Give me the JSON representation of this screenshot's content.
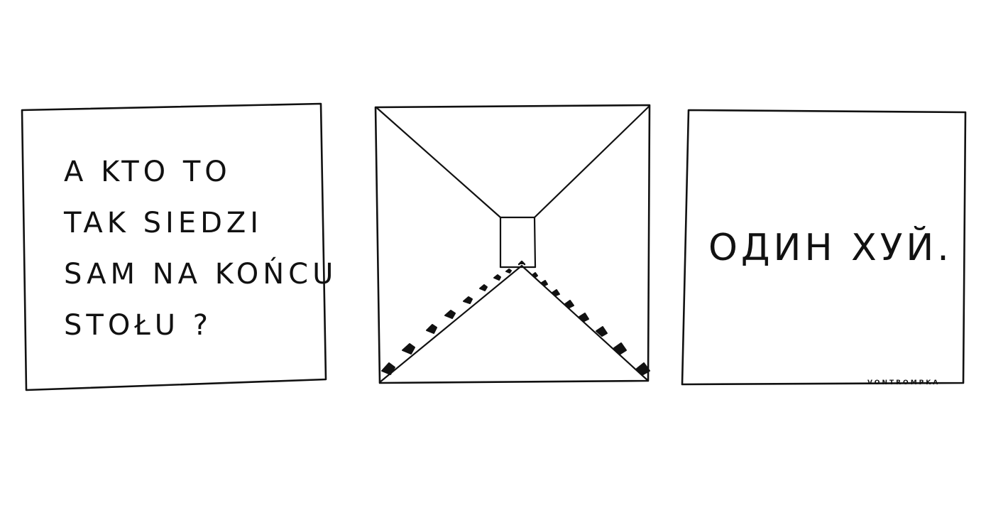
{
  "panels": [
    {
      "id": "question",
      "lines": [
        "A KTO TO",
        "TAK SIEDZI",
        "SAM NA KOŃCU",
        "STOŁU ?"
      ]
    },
    {
      "id": "long-table"
    },
    {
      "id": "answer",
      "text": "ОДИН ХУЙ."
    }
  ],
  "signature": "VONTROMPKA",
  "colors": {
    "ink": "#111111",
    "paper": "#ffffff"
  }
}
